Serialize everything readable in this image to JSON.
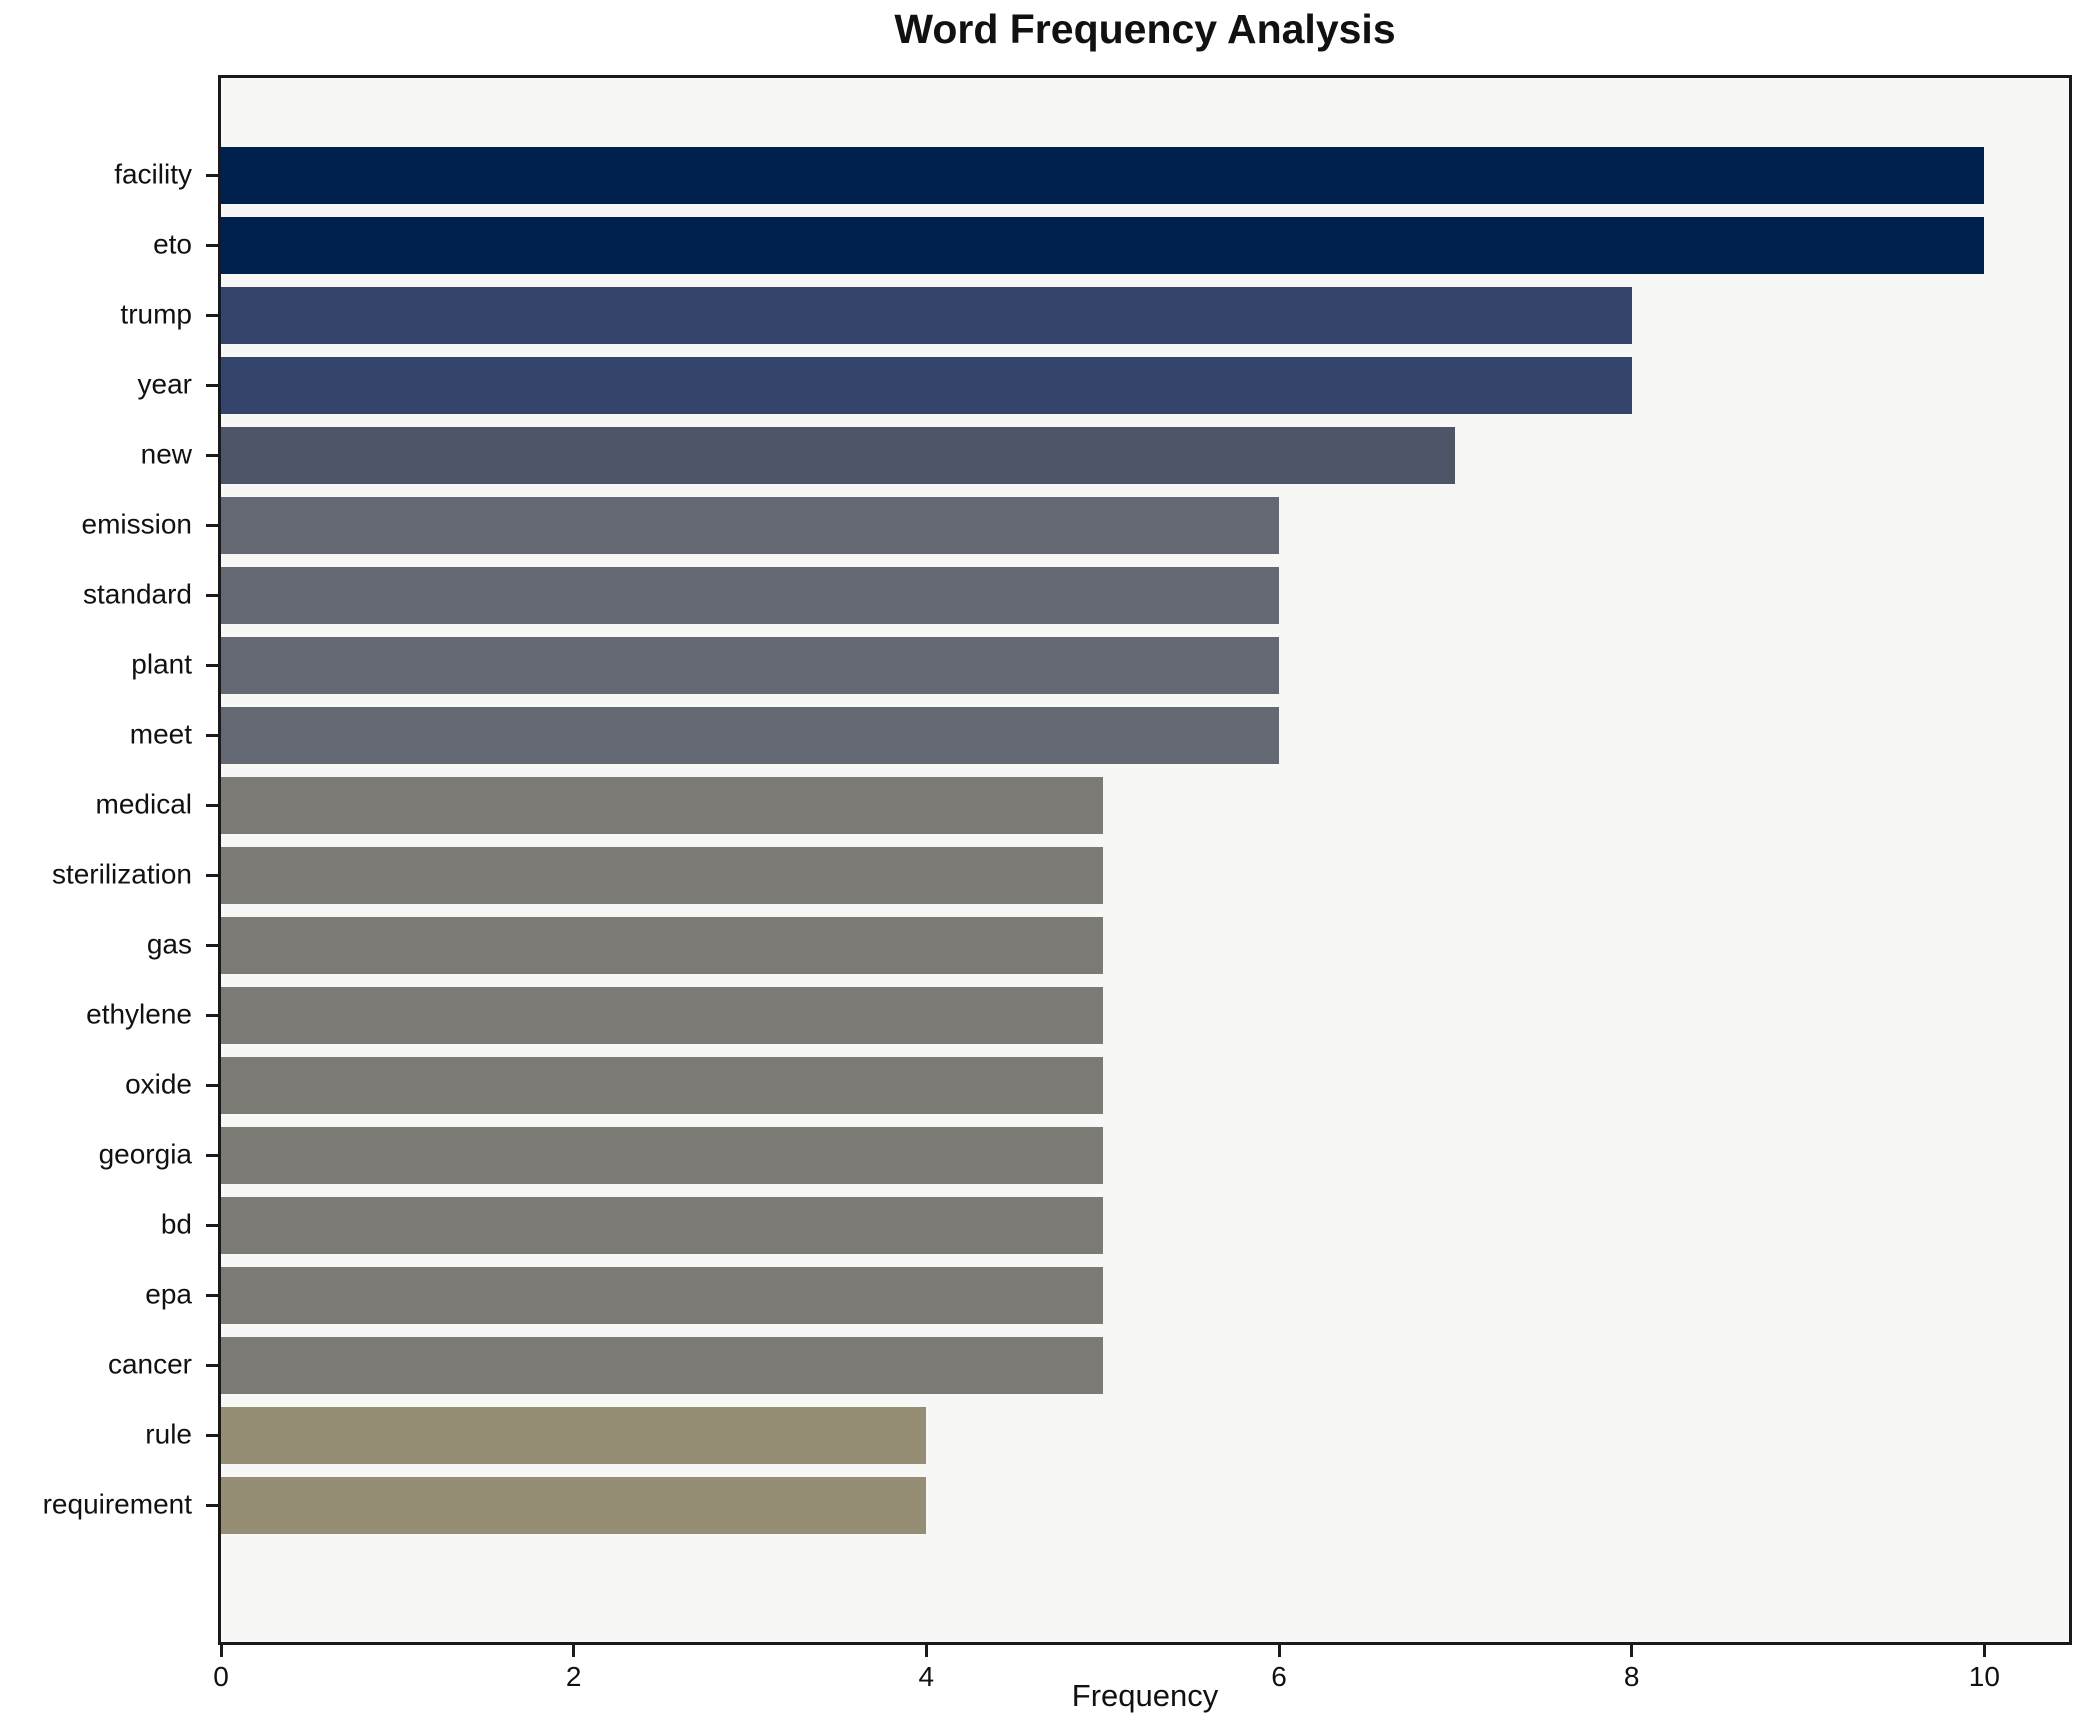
{
  "title": "Word Frequency Analysis",
  "chart_data": {
    "type": "bar",
    "orientation": "horizontal",
    "title": "Word Frequency Analysis",
    "xlabel": "Frequency",
    "ylabel": "",
    "categories": [
      "facility",
      "eto",
      "trump",
      "year",
      "new",
      "emission",
      "standard",
      "plant",
      "meet",
      "medical",
      "sterilization",
      "gas",
      "ethylene",
      "oxide",
      "georgia",
      "bd",
      "epa",
      "cancer",
      "rule",
      "requirement"
    ],
    "values": [
      10,
      10,
      8,
      8,
      7,
      6,
      6,
      6,
      6,
      5,
      5,
      5,
      5,
      5,
      5,
      5,
      5,
      5,
      4,
      4
    ],
    "bar_colors": [
      "#00214d",
      "#00214d",
      "#35446b",
      "#35446b",
      "#4d5569",
      "#646872",
      "#646872",
      "#646872",
      "#646872",
      "#7b7a75",
      "#7b7a75",
      "#7b7a75",
      "#7b7a75",
      "#7b7a75",
      "#7b7a75",
      "#7b7a75",
      "#7b7a75",
      "#7b7a75",
      "#958d74",
      "#958d74"
    ],
    "xlim": [
      0,
      10.48
    ],
    "xticks": [
      0,
      2,
      4,
      6,
      8,
      10
    ],
    "grid": false,
    "legend": false,
    "plot_bg": "#f7f7f5",
    "fig_bg": "#ffffff",
    "spine_color": "#1a1a1a"
  }
}
